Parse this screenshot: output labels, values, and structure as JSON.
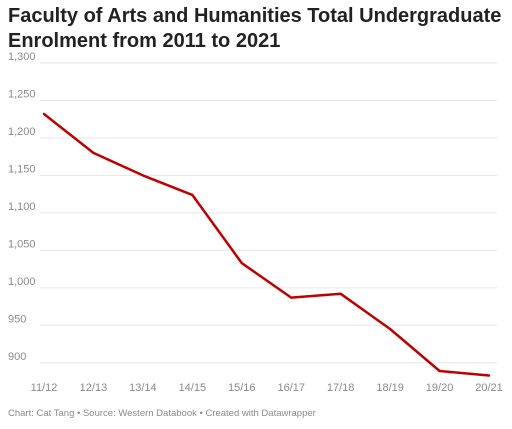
{
  "chart_data": {
    "type": "line",
    "title": "Faculty of Arts and Humanities Total Undergraduate Enrolment from 2011 to 2021",
    "xlabel": "",
    "ylabel": "",
    "categories": [
      "11/12",
      "12/13",
      "13/14",
      "14/15",
      "15/16",
      "16/17",
      "17/18",
      "18/19",
      "19/20",
      "20/21"
    ],
    "series": [
      {
        "values": [
          1232,
          1180,
          1150,
          1124,
          1033,
          987,
          992,
          945,
          889,
          883
        ],
        "color": "#c00000"
      }
    ],
    "ylim": [
      885,
      1300
    ],
    "yticks": [
      900,
      950,
      1000,
      1050,
      1100,
      1150,
      1200,
      1250,
      1300
    ],
    "ytick_labels": [
      "900",
      "950",
      "1,000",
      "1,050",
      "1,100",
      "1,150",
      "1,200",
      "1,250",
      "1,300"
    ],
    "grid": true,
    "legend": "none"
  },
  "footer": "Chart: Cat Tang • Source: Western Databook • Created with Datawrapper",
  "colors": {
    "line": "#c00000",
    "grid": "#e6e6e6",
    "text": "#222222",
    "muted": "#8a8a8a"
  }
}
